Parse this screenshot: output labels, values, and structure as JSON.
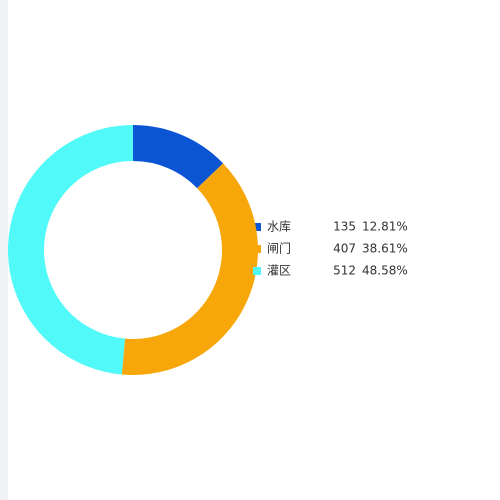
{
  "chart_data": {
    "type": "donut",
    "categories": [
      "水库",
      "闸门",
      "灌区"
    ],
    "values": [
      135,
      407,
      512
    ],
    "percent_labels": [
      "12.81%",
      "38.61%",
      "48.58%"
    ],
    "colors": [
      "#0b55d4",
      "#f8a70a",
      "#52f9f9"
    ]
  }
}
